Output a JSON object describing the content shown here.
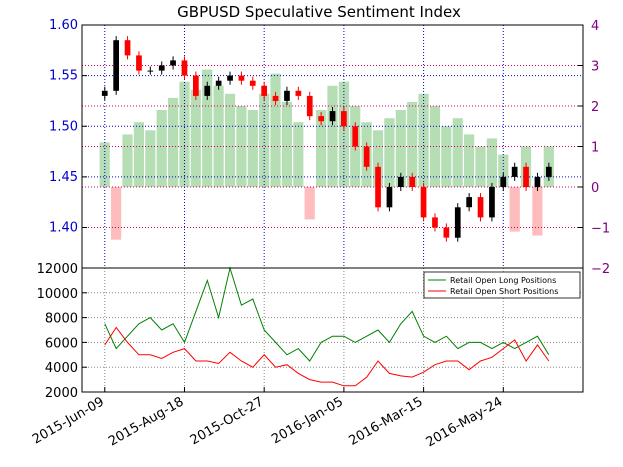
{
  "chart_data": [
    {
      "panel": "top",
      "type": "candlestick",
      "title": "GBPUSD Speculative Sentiment Index",
      "ylim": [
        1.36,
        1.6
      ],
      "yticks": [
        "1.40",
        "1.45",
        "1.50",
        "1.55",
        "1.60"
      ],
      "ytick_values": [
        1.4,
        1.45,
        1.5,
        1.55,
        1.6
      ],
      "secondary_axis": {
        "ylim": [
          -2,
          4
        ],
        "yticks": [
          "−2",
          "−1",
          "0",
          "1",
          "2",
          "3",
          "4"
        ],
        "ytick_values": [
          -2,
          -1,
          0,
          1,
          2,
          3,
          4
        ]
      },
      "grid": true,
      "price_series": {
        "x": [
          0,
          10,
          20,
          30,
          40,
          50,
          60,
          70,
          80,
          90,
          100,
          110,
          120,
          130,
          140,
          150,
          160,
          170,
          180,
          190,
          200,
          210,
          220,
          230,
          240,
          250,
          260,
          270,
          280,
          290,
          300,
          310,
          320,
          330,
          340,
          350,
          360,
          370,
          380,
          390
        ],
        "y": [
          1.535,
          1.585,
          1.57,
          1.555,
          1.555,
          1.56,
          1.565,
          1.55,
          1.53,
          1.54,
          1.545,
          1.55,
          1.545,
          1.54,
          1.53,
          1.525,
          1.535,
          1.53,
          1.51,
          1.505,
          1.515,
          1.5,
          1.48,
          1.46,
          1.42,
          1.44,
          1.45,
          1.44,
          1.41,
          1.4,
          1.39,
          1.42,
          1.43,
          1.41,
          1.44,
          1.45,
          1.46,
          1.44,
          1.45,
          1.46
        ]
      },
      "ssi_series": {
        "x": [
          0,
          10,
          20,
          30,
          40,
          50,
          60,
          70,
          80,
          90,
          100,
          110,
          120,
          130,
          140,
          150,
          160,
          170,
          180,
          190,
          200,
          210,
          220,
          230,
          240,
          250,
          260,
          270,
          280,
          290,
          300,
          310,
          320,
          330,
          340,
          350,
          360,
          370,
          380,
          390
        ],
        "y": [
          1.1,
          -1.3,
          1.3,
          1.6,
          1.4,
          1.9,
          2.2,
          2.6,
          2.4,
          2.9,
          2.5,
          2.3,
          2.0,
          1.9,
          2.3,
          2.8,
          2.1,
          1.6,
          -0.8,
          1.9,
          2.5,
          2.6,
          2.0,
          1.6,
          1.4,
          1.7,
          1.9,
          2.1,
          2.3,
          2.0,
          1.5,
          1.7,
          1.3,
          1.0,
          1.2,
          0.8,
          -1.1,
          1.0,
          -1.2,
          1.0
        ]
      },
      "colors": {
        "up": "#000000",
        "down": "#ff0000",
        "ssi_positive": "#a8d8a8",
        "ssi_negative": "#ffb0b0",
        "grid": "#0000cc",
        "zero_grid": "#800080"
      }
    },
    {
      "panel": "bottom",
      "type": "line",
      "ylim": [
        2000,
        12000
      ],
      "yticks": [
        "2000",
        "4000",
        "6000",
        "8000",
        "10000",
        "12000"
      ],
      "ytick_values": [
        2000,
        4000,
        6000,
        8000,
        10000,
        12000
      ],
      "x_ticks": [
        "2015-Jun-09",
        "2015-Aug-18",
        "2015-Oct-27",
        "2016-Jan-05",
        "2016-Mar-15",
        "2016-May-24"
      ],
      "x_tick_positions": [
        0,
        70,
        140,
        210,
        280,
        350
      ],
      "xlim": [
        -20,
        420
      ],
      "legend": "top-right",
      "grid": true,
      "series": [
        {
          "name": "Retail Open Long Positions",
          "color": "#008000",
          "x": [
            0,
            10,
            20,
            30,
            40,
            50,
            60,
            70,
            80,
            90,
            100,
            110,
            120,
            130,
            140,
            150,
            160,
            170,
            180,
            190,
            200,
            210,
            220,
            230,
            240,
            250,
            260,
            270,
            280,
            290,
            300,
            310,
            320,
            330,
            340,
            350,
            360,
            370,
            380,
            390
          ],
          "values": [
            7500,
            5500,
            6500,
            7500,
            8000,
            7000,
            7500,
            6000,
            8500,
            11000,
            8000,
            12000,
            9000,
            9500,
            7000,
            6000,
            5000,
            5500,
            4500,
            6000,
            6500,
            6500,
            6000,
            6500,
            7000,
            6000,
            7500,
            8500,
            6500,
            6000,
            6500,
            5500,
            6000,
            6000,
            5500,
            6000,
            5500,
            6000,
            6500,
            5000
          ]
        },
        {
          "name": "Retail Open Short Positions",
          "color": "#ff0000",
          "x": [
            0,
            10,
            20,
            30,
            40,
            50,
            60,
            70,
            80,
            90,
            100,
            110,
            120,
            130,
            140,
            150,
            160,
            170,
            180,
            190,
            200,
            210,
            220,
            230,
            240,
            250,
            260,
            270,
            280,
            290,
            300,
            310,
            320,
            330,
            340,
            350,
            360,
            370,
            380,
            390
          ],
          "values": [
            5800,
            7200,
            6000,
            5000,
            5000,
            4700,
            5200,
            5500,
            4500,
            4500,
            4300,
            5200,
            4500,
            4000,
            5000,
            4000,
            4200,
            3500,
            3000,
            2800,
            2800,
            2500,
            2500,
            3200,
            4500,
            3500,
            3300,
            3200,
            3600,
            4200,
            4500,
            4500,
            3800,
            4500,
            4800,
            5500,
            6200,
            4500,
            5800,
            4500
          ]
        }
      ]
    }
  ]
}
